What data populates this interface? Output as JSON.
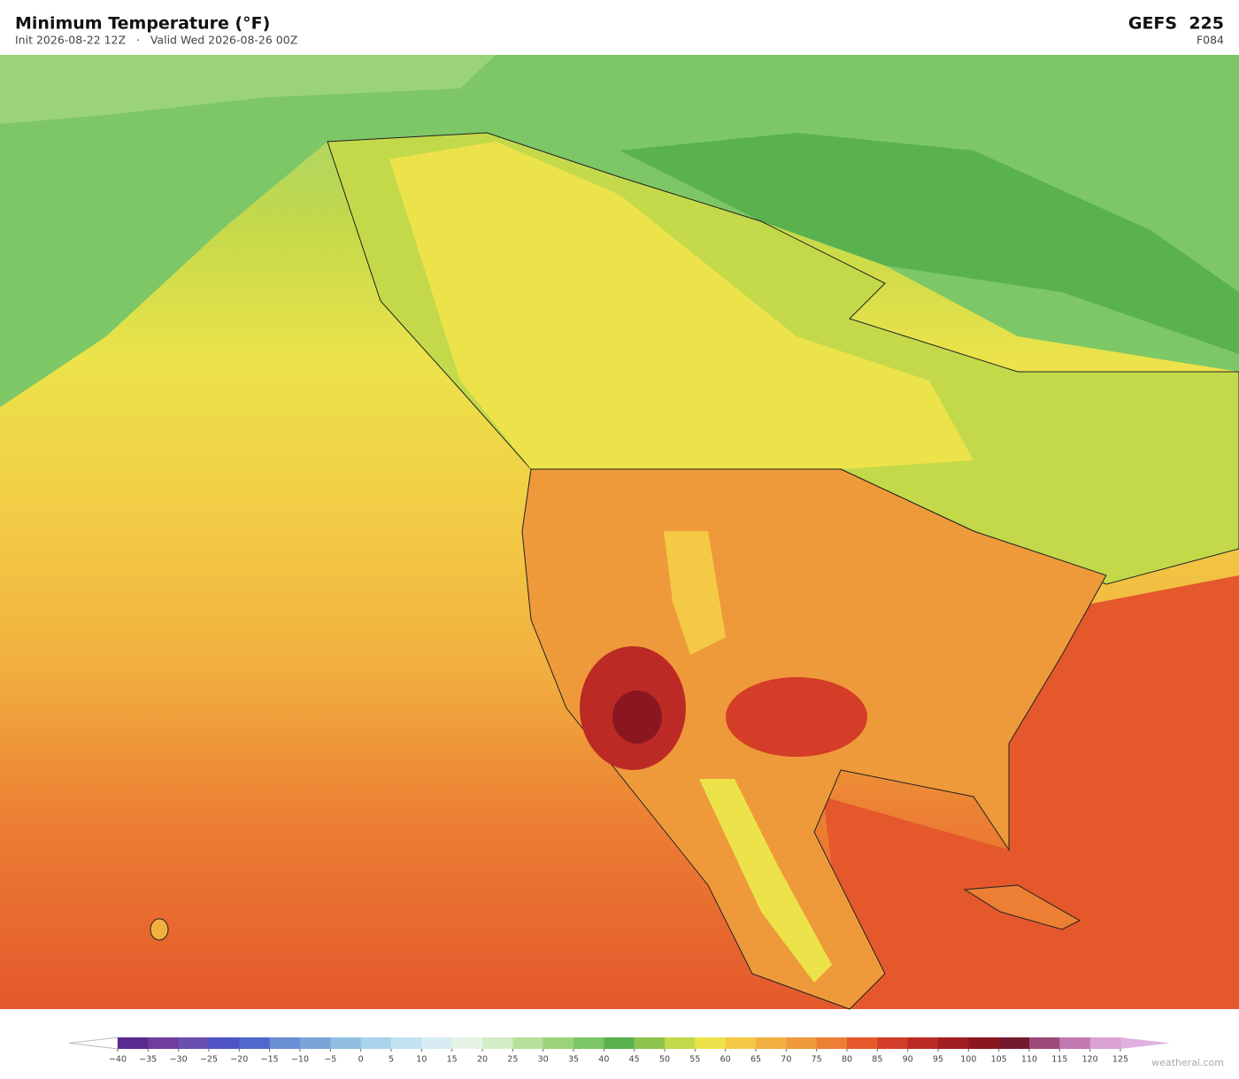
{
  "header": {
    "title": "Minimum Temperature  (°F)",
    "subtitle": "Init 2026-08-22 12Z   ·   Valid Wed 2026-08-26 00Z",
    "model": "GEFS  225",
    "forecast_hour": "F084"
  },
  "colorbar": {
    "ticks": [
      {
        "value": -40,
        "label": "−40"
      },
      {
        "value": -35,
        "label": "−35"
      },
      {
        "value": -30,
        "label": "−30"
      },
      {
        "value": -25,
        "label": "−25"
      },
      {
        "value": -20,
        "label": "−20"
      },
      {
        "value": -15,
        "label": "−15"
      },
      {
        "value": -10,
        "label": "−10"
      },
      {
        "value": -5,
        "label": "−5"
      },
      0,
      5,
      10,
      15,
      20,
      25,
      30,
      35,
      40,
      45,
      50,
      55,
      60,
      65,
      70,
      75,
      80,
      85,
      90,
      95,
      100,
      105,
      110,
      115,
      120,
      125
    ],
    "colors": [
      "#5b2a8e",
      "#6e3d9e",
      "#6a4fb0",
      "#4f53c4",
      "#5068cc",
      "#6b8fd4",
      "#7aa4d8",
      "#90bfe2",
      "#a9d3ec",
      "#c2e2f0",
      "#d8ecf3",
      "#e6f4e8",
      "#d3edc9",
      "#b9e09b",
      "#9bd37a",
      "#7dc767",
      "#59b24f",
      "#8dc44d",
      "#c4d94a",
      "#ece34a",
      "#f3c945",
      "#f1b03f",
      "#ef9a3a",
      "#ec7f33",
      "#e4582c",
      "#d43d27",
      "#bc2a25",
      "#a11e22",
      "#8a161f",
      "#741a2e",
      "#9c4a79",
      "#c278b0",
      "#d9a2d2"
    ],
    "under_color": "#ffffff",
    "over_color": "#e0b0e0"
  },
  "watermark": "weatherai.com"
}
